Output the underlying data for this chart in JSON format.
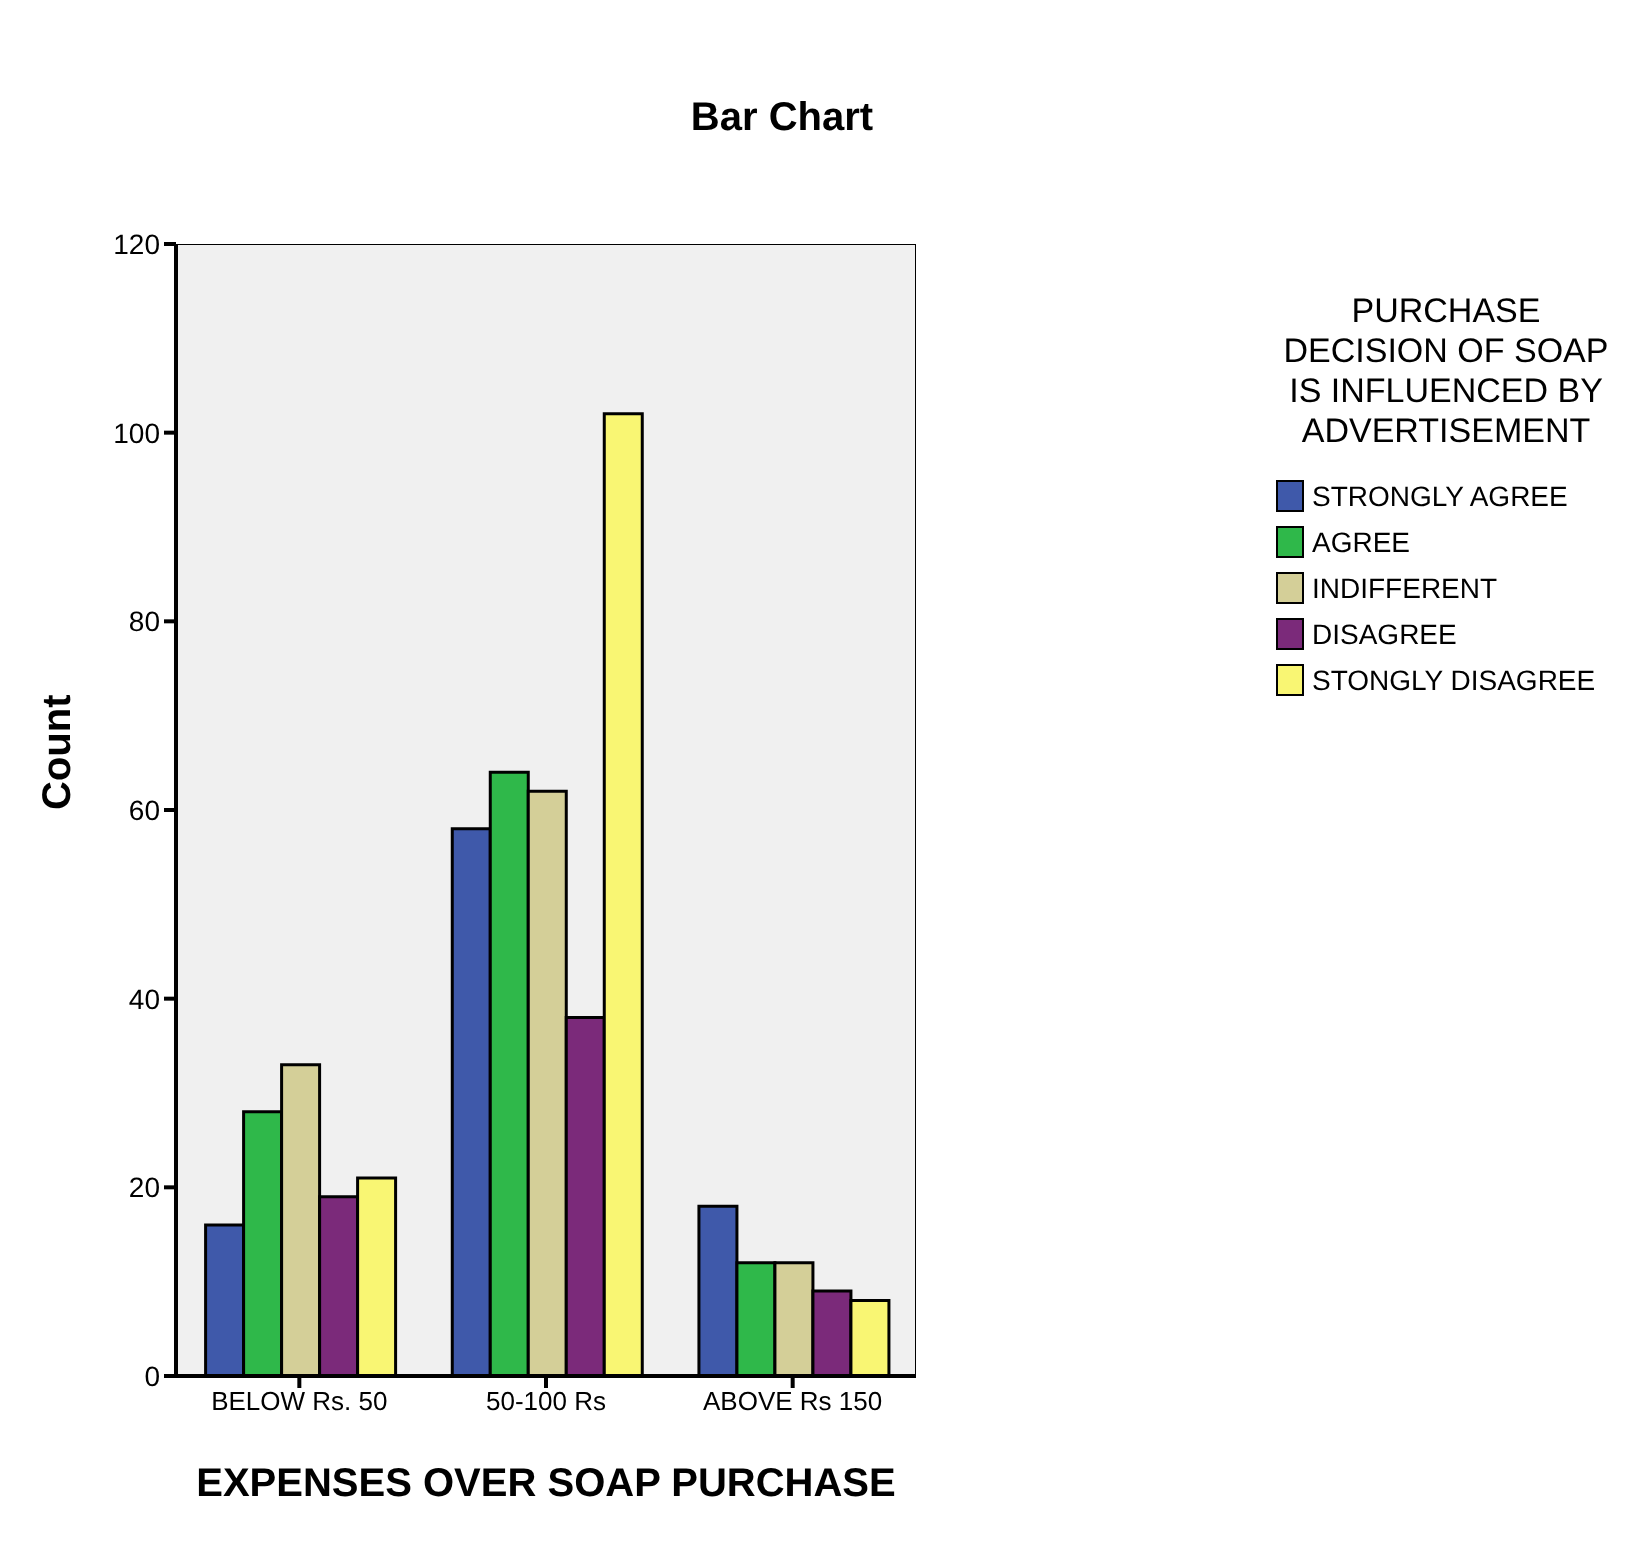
{
  "chart_data": {
    "type": "bar",
    "title": "Bar Chart",
    "xlabel": "EXPENSES OVER SOAP PURCHASE",
    "ylabel": "Count",
    "legend_title": "PURCHASE DECISION OF SOAP IS INFLUENCED BY ADVERTISEMENT",
    "categories": [
      "BELOW Rs. 50",
      "50-100 Rs",
      "ABOVE Rs 150"
    ],
    "series": [
      {
        "name": "STRONGLY AGREE",
        "color": "#3f59aa",
        "values": [
          16,
          58,
          18
        ]
      },
      {
        "name": "AGREE",
        "color": "#2fb84a",
        "values": [
          28,
          64,
          12
        ]
      },
      {
        "name": "INDIFFERENT",
        "color": "#d4cf98",
        "values": [
          33,
          62,
          12
        ]
      },
      {
        "name": "DISAGREE",
        "color": "#7b2a7a",
        "values": [
          19,
          38,
          9
        ]
      },
      {
        "name": "STONGLY DISAGREE",
        "color": "#f9f673",
        "values": [
          21,
          102,
          8
        ]
      }
    ],
    "ylim": [
      0,
      120
    ],
    "yticks": [
      0,
      20,
      40,
      60,
      80,
      100,
      120
    ],
    "grid": false,
    "legend": "right"
  }
}
